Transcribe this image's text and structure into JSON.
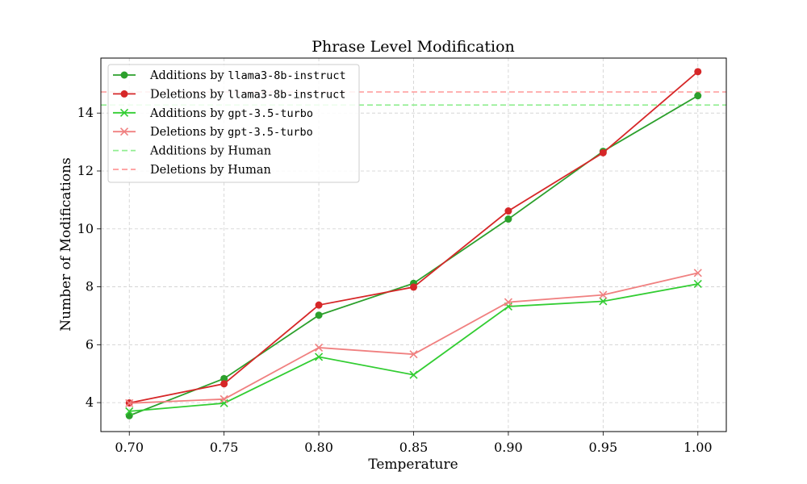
{
  "chart_data": {
    "type": "line",
    "title": "Phrase Level Modification",
    "xlabel": "Temperature",
    "ylabel": "Number of Modifications",
    "x": [
      0.7,
      0.75,
      0.8,
      0.85,
      0.9,
      0.95,
      1.0
    ],
    "x_tick_labels": [
      "0.70",
      "0.75",
      "0.80",
      "0.85",
      "0.90",
      "0.95",
      "1.00"
    ],
    "xlim": [
      0.685,
      1.015
    ],
    "ylim": [
      3.0,
      15.9
    ],
    "y_ticks": [
      4,
      6,
      8,
      10,
      12,
      14
    ],
    "grid": true,
    "legend_position": "upper-left",
    "series": [
      {
        "name_prefix": "Additions by ",
        "name_code": "llama3-8b-instruct",
        "marker": "circle",
        "color": "#2ca02c",
        "style": "solid",
        "values": [
          3.55,
          4.83,
          7.02,
          8.12,
          10.34,
          12.68,
          14.6
        ]
      },
      {
        "name_prefix": "Deletions by ",
        "name_code": "llama3-8b-instruct",
        "marker": "circle",
        "color": "#d62728",
        "style": "solid",
        "values": [
          3.99,
          4.65,
          7.37,
          7.99,
          10.62,
          12.63,
          15.43
        ]
      },
      {
        "name_prefix": "Additions by ",
        "name_code": "gpt-3.5-turbo",
        "marker": "x",
        "color": "#32cd32",
        "style": "solid",
        "values": [
          3.7,
          3.98,
          5.58,
          4.96,
          7.32,
          7.5,
          8.1
        ]
      },
      {
        "name_prefix": "Deletions by ",
        "name_code": "gpt-3.5-turbo",
        "marker": "x",
        "color": "#f08080",
        "style": "solid",
        "values": [
          3.98,
          4.12,
          5.9,
          5.67,
          7.47,
          7.72,
          8.48
        ]
      },
      {
        "name_prefix": "Additions by Human",
        "name_code": "",
        "marker": "none",
        "color": "#90ee90",
        "style": "dashed",
        "hline": 14.28
      },
      {
        "name_prefix": "Deletions by Human",
        "name_code": "",
        "marker": "none",
        "color": "#ff9999",
        "style": "dashed",
        "hline": 14.73
      }
    ]
  }
}
